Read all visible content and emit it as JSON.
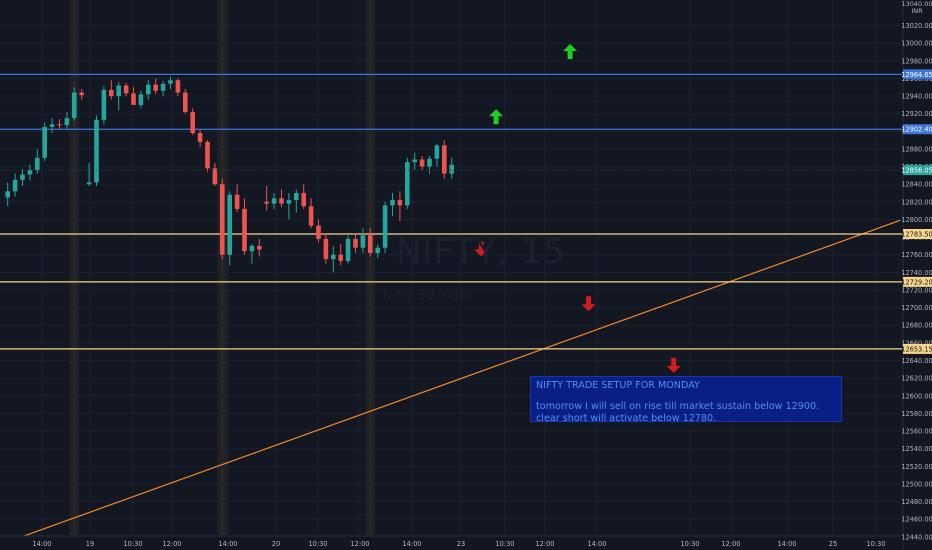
{
  "chart_data": {
    "type": "candlestick",
    "symbol": "NIFTY, 15",
    "symbol_subtitle": "Nifty 50 Index",
    "currency": "INR",
    "top_price_label": "13040.00",
    "ylim": [
      12425,
      13049
    ],
    "price_ticks": [
      13020.0,
      13000.0,
      12980.0,
      12960.0,
      12940.0,
      12920.0,
      12900.0,
      12880.0,
      12860.0,
      12840.0,
      12820.0,
      12800.0,
      12780.0,
      12760.0,
      12740.0,
      12720.0,
      12700.0,
      12680.0,
      12660.0,
      12640.0,
      12620.0,
      12600.0,
      12580.0,
      12560.0,
      12540.0,
      12520.0,
      12500.0,
      12480.0,
      12460.0,
      12440.0
    ],
    "time_labels": [
      "14:00",
      "19",
      "10:30",
      "12:00",
      "14:00",
      "20",
      "10:30",
      "12:00",
      "14:00",
      "23",
      "10:30",
      "12:00",
      "14:00",
      "10:30",
      "12:00",
      "14:00",
      "25",
      "10:30"
    ],
    "horizontal_levels": [
      {
        "price": 12964.65,
        "label": "12964.65",
        "color": "#3f74d8"
      },
      {
        "price": 12902.4,
        "label": "12902.40",
        "color": "#3f74d8"
      },
      {
        "price": 12783.5,
        "label": "12783.50",
        "color": "#f6d58c"
      },
      {
        "price": 12729.2,
        "label": "12729.20",
        "color": "#f6d58c"
      },
      {
        "price": 12653.15,
        "label": "12653.15",
        "color": "#f6d58c"
      }
    ],
    "last_price": {
      "price": 12856.05,
      "label": "12856.05",
      "color": "#26a69a"
    },
    "trendline": {
      "start": [
        -10,
        12427
      ],
      "end": [
        900,
        12799
      ],
      "color": "#f28c28"
    },
    "arrows": [
      {
        "direction": "up",
        "slot": 76.0,
        "price": 12990,
        "color": "#20d020"
      },
      {
        "direction": "up",
        "slot": 66.0,
        "price": 12916,
        "color": "#20d020"
      },
      {
        "direction": "down",
        "slot": 64.0,
        "price": 12767,
        "color": "#d01c1c"
      },
      {
        "direction": "down",
        "slot": 78.5,
        "price": 12705,
        "color": "#d01c1c"
      },
      {
        "direction": "down",
        "slot": 90.0,
        "price": 12635,
        "color": "#d01c1c"
      }
    ],
    "session_shading": [
      9.5,
      29.5,
      49.5
    ],
    "candles": [
      {
        "o": 12825,
        "h": 12842,
        "l": 12815,
        "c": 12832
      },
      {
        "o": 12832,
        "h": 12852,
        "l": 12826,
        "c": 12845
      },
      {
        "o": 12845,
        "h": 12857,
        "l": 12838,
        "c": 12851
      },
      {
        "o": 12851,
        "h": 12862,
        "l": 12844,
        "c": 12856
      },
      {
        "o": 12856,
        "h": 12880,
        "l": 12852,
        "c": 12870
      },
      {
        "o": 12870,
        "h": 12910,
        "l": 12866,
        "c": 12905
      },
      {
        "o": 12905,
        "h": 12915,
        "l": 12898,
        "c": 12908
      },
      {
        "o": 12908,
        "h": 12914,
        "l": 12903,
        "c": 12907
      },
      {
        "o": 12907,
        "h": 12922,
        "l": 12902,
        "c": 12915
      },
      {
        "o": 12915,
        "h": 12950,
        "l": 12912,
        "c": 12944
      },
      {
        "o": 12944,
        "h": 12948,
        "l": 12936,
        "c": 12941
      },
      {
        "o": 12840,
        "h": 12864,
        "l": 12838,
        "c": 12842
      },
      {
        "o": 12842,
        "h": 12918,
        "l": 12838,
        "c": 12913
      },
      {
        "o": 12913,
        "h": 12951,
        "l": 12908,
        "c": 12947
      },
      {
        "o": 12947,
        "h": 12958,
        "l": 12936,
        "c": 12940
      },
      {
        "o": 12940,
        "h": 12956,
        "l": 12924,
        "c": 12952
      },
      {
        "o": 12952,
        "h": 12955,
        "l": 12940,
        "c": 12943
      },
      {
        "o": 12943,
        "h": 12950,
        "l": 12930,
        "c": 12930
      },
      {
        "o": 12930,
        "h": 12946,
        "l": 12926,
        "c": 12942
      },
      {
        "o": 12942,
        "h": 12958,
        "l": 12936,
        "c": 12953
      },
      {
        "o": 12953,
        "h": 12960,
        "l": 12942,
        "c": 12946
      },
      {
        "o": 12946,
        "h": 12957,
        "l": 12940,
        "c": 12954
      },
      {
        "o": 12954,
        "h": 12962,
        "l": 12948,
        "c": 12958
      },
      {
        "o": 12958,
        "h": 12960,
        "l": 12940,
        "c": 12944
      },
      {
        "o": 12944,
        "h": 12948,
        "l": 12920,
        "c": 12922
      },
      {
        "o": 12922,
        "h": 12926,
        "l": 12896,
        "c": 12898
      },
      {
        "o": 12898,
        "h": 12902,
        "l": 12882,
        "c": 12888
      },
      {
        "o": 12888,
        "h": 12890,
        "l": 12854,
        "c": 12858
      },
      {
        "o": 12858,
        "h": 12864,
        "l": 12838,
        "c": 12840
      },
      {
        "o": 12840,
        "h": 12846,
        "l": 12755,
        "c": 12760
      },
      {
        "o": 12760,
        "h": 12832,
        "l": 12748,
        "c": 12828
      },
      {
        "o": 12828,
        "h": 12840,
        "l": 12808,
        "c": 12812
      },
      {
        "o": 12812,
        "h": 12824,
        "l": 12760,
        "c": 12764
      },
      {
        "o": 12764,
        "h": 12772,
        "l": 12750,
        "c": 12770
      },
      {
        "o": 12770,
        "h": 12778,
        "l": 12758,
        "c": 12766
      },
      {
        "o": 12820,
        "h": 12838,
        "l": 12810,
        "c": 12818
      },
      {
        "o": 12818,
        "h": 12830,
        "l": 12812,
        "c": 12824
      },
      {
        "o": 12824,
        "h": 12834,
        "l": 12814,
        "c": 12818
      },
      {
        "o": 12818,
        "h": 12830,
        "l": 12800,
        "c": 12822
      },
      {
        "o": 12822,
        "h": 12834,
        "l": 12808,
        "c": 12830
      },
      {
        "o": 12830,
        "h": 12840,
        "l": 12812,
        "c": 12815
      },
      {
        "o": 12815,
        "h": 12824,
        "l": 12790,
        "c": 12793
      },
      {
        "o": 12793,
        "h": 12800,
        "l": 12774,
        "c": 12778
      },
      {
        "o": 12778,
        "h": 12784,
        "l": 12750,
        "c": 12755
      },
      {
        "o": 12755,
        "h": 12770,
        "l": 12740,
        "c": 12760
      },
      {
        "o": 12760,
        "h": 12772,
        "l": 12748,
        "c": 12753
      },
      {
        "o": 12753,
        "h": 12782,
        "l": 12750,
        "c": 12778
      },
      {
        "o": 12778,
        "h": 12784,
        "l": 12762,
        "c": 12768
      },
      {
        "o": 12768,
        "h": 12790,
        "l": 12762,
        "c": 12782
      },
      {
        "o": 12782,
        "h": 12790,
        "l": 12758,
        "c": 12762
      },
      {
        "o": 12762,
        "h": 12772,
        "l": 12756,
        "c": 12768
      },
      {
        "o": 12768,
        "h": 12820,
        "l": 12762,
        "c": 12816
      },
      {
        "o": 12816,
        "h": 12830,
        "l": 12804,
        "c": 12822
      },
      {
        "o": 12822,
        "h": 12832,
        "l": 12798,
        "c": 12816
      },
      {
        "o": 12816,
        "h": 12870,
        "l": 12812,
        "c": 12865
      },
      {
        "o": 12865,
        "h": 12876,
        "l": 12856,
        "c": 12868
      },
      {
        "o": 12868,
        "h": 12872,
        "l": 12856,
        "c": 12860
      },
      {
        "o": 12860,
        "h": 12872,
        "l": 12852,
        "c": 12869
      },
      {
        "o": 12869,
        "h": 12886,
        "l": 12860,
        "c": 12884
      },
      {
        "o": 12884,
        "h": 12890,
        "l": 12846,
        "c": 12852
      },
      {
        "o": 12852,
        "h": 12870,
        "l": 12846,
        "c": 12862
      }
    ]
  }
}
